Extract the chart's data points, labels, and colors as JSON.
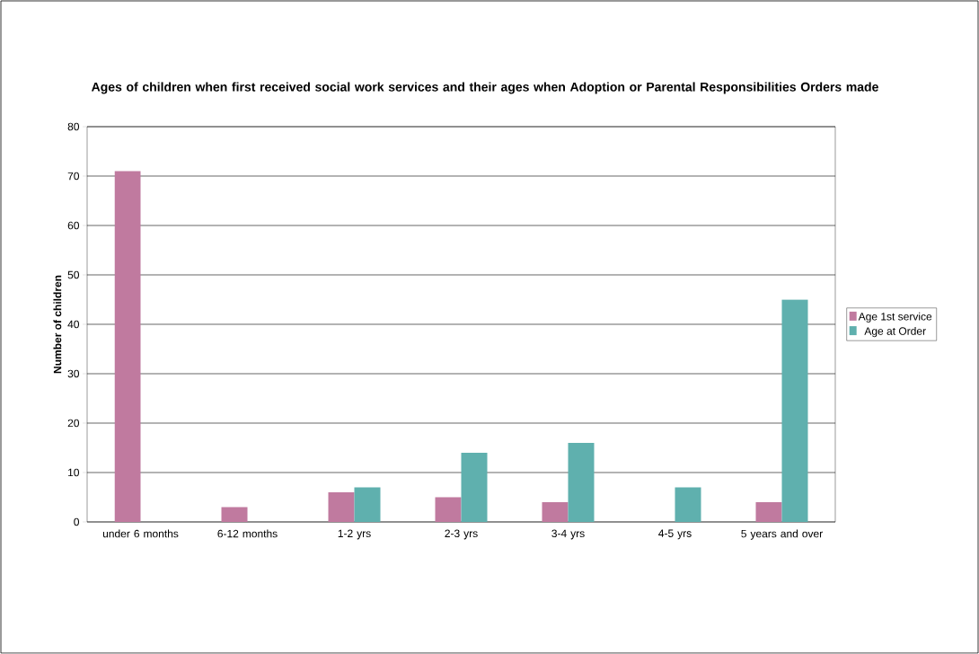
{
  "chart_data": {
    "type": "bar",
    "title": "Ages of children when first received social work services and their ages when Adoption or Parental Responsibilities Orders made",
    "ylabel": "Number of children",
    "categories": [
      "under 6 months",
      "6-12 months",
      "1-2 yrs",
      "2-3 yrs",
      "3-4 yrs",
      "4-5 yrs",
      "5 years and over"
    ],
    "series": [
      {
        "name": "Age 1st service",
        "color": "#c07a9f",
        "values": [
          71,
          3,
          6,
          5,
          4,
          0,
          4
        ]
      },
      {
        "name": "Age at Order",
        "color": "#5fb0ae",
        "values": [
          0,
          0,
          7,
          14,
          16,
          7,
          45
        ]
      }
    ],
    "ylim": [
      0,
      80
    ],
    "yticks": [
      0,
      10,
      20,
      30,
      40,
      50,
      60,
      70,
      80
    ],
    "grid": "y",
    "legend": "right"
  }
}
